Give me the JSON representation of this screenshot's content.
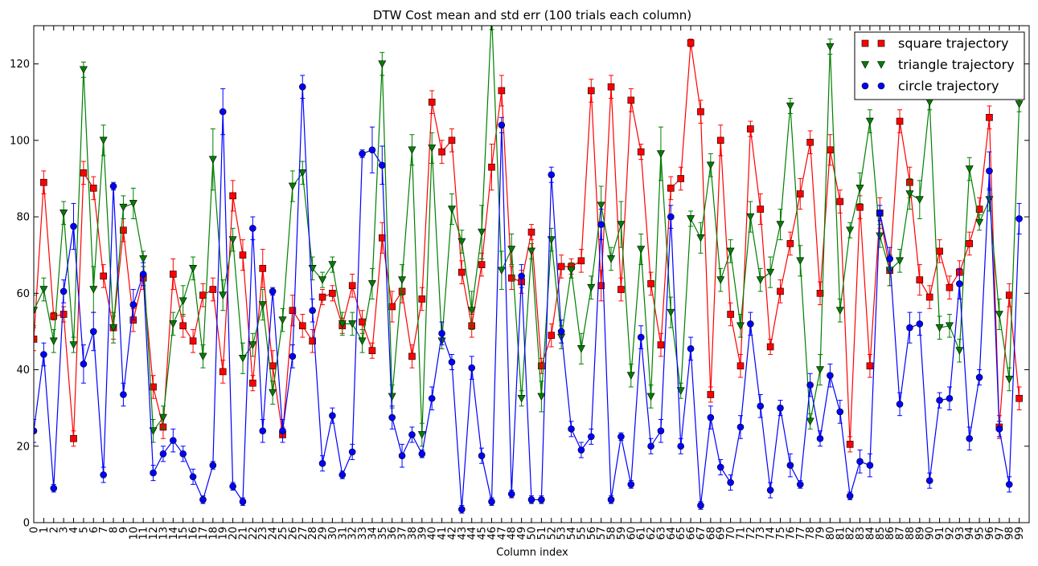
{
  "chart_data": {
    "type": "line",
    "title": "DTW Cost mean and std err (100 trials each column)",
    "xlabel": "Column index",
    "ylabel": "",
    "xlim": [
      0,
      100
    ],
    "ylim": [
      0,
      130
    ],
    "yticks": [
      0,
      20,
      40,
      60,
      80,
      100,
      120
    ],
    "legend_position": "top-right",
    "x": [
      0,
      1,
      2,
      3,
      4,
      5,
      6,
      7,
      8,
      9,
      10,
      11,
      12,
      13,
      14,
      15,
      16,
      17,
      18,
      19,
      20,
      21,
      22,
      23,
      24,
      25,
      26,
      27,
      28,
      29,
      30,
      31,
      32,
      33,
      34,
      35,
      36,
      37,
      38,
      39,
      40,
      41,
      42,
      43,
      44,
      45,
      46,
      47,
      48,
      49,
      50,
      51,
      52,
      53,
      54,
      55,
      56,
      57,
      58,
      59,
      60,
      61,
      62,
      63,
      64,
      65,
      66,
      67,
      68,
      69,
      70,
      71,
      72,
      73,
      74,
      75,
      76,
      77,
      78,
      79,
      80,
      81,
      82,
      83,
      84,
      85,
      86,
      87,
      88,
      89,
      90,
      91,
      92,
      93,
      94,
      95,
      96,
      97,
      98,
      99
    ],
    "series": [
      {
        "name": "square trajectory",
        "color": "#ff0000",
        "marker": "square",
        "values": [
          48,
          89,
          54,
          54.5,
          22,
          91.5,
          87.5,
          64.5,
          51,
          76.5,
          53,
          64,
          35.5,
          25,
          65,
          51.5,
          47.5,
          59.5,
          61,
          39.5,
          85.5,
          70,
          36.5,
          66.5,
          41,
          23,
          55.5,
          51.5,
          47.5,
          59,
          60,
          51.5,
          62,
          52.5,
          45,
          74.5,
          56.5,
          60.5,
          43.5,
          58.5,
          110,
          97,
          100,
          65.5,
          51.5,
          67.5,
          93,
          113,
          64,
          63,
          76,
          41,
          49,
          67,
          67,
          68.5,
          113,
          62,
          114,
          61,
          110.5,
          97,
          62.5,
          46.5,
          87.5,
          90,
          125.5,
          107.5,
          33.5,
          100,
          54.5,
          41,
          103,
          82,
          46,
          60.5,
          73,
          86,
          99.5,
          60,
          97.5,
          84,
          20.5,
          82.5,
          41,
          81,
          66,
          105,
          89,
          63.5,
          59,
          71,
          61.5,
          65.5,
          73,
          82,
          106,
          25,
          59.5,
          32.5
        ],
        "errors": [
          3,
          3,
          1,
          2,
          2,
          3,
          3,
          3,
          3,
          3,
          3,
          3,
          3,
          3,
          4,
          3,
          3,
          3,
          3,
          3,
          4,
          4,
          2,
          5,
          4,
          2,
          4,
          3,
          3,
          2,
          2,
          2,
          3,
          3,
          2,
          4,
          4,
          3,
          3,
          3,
          3,
          3,
          3,
          3,
          3,
          3,
          6,
          4,
          3,
          3,
          2,
          2,
          3,
          3,
          2,
          3,
          3,
          4,
          3,
          3,
          3,
          2,
          3,
          3,
          3,
          3,
          1,
          3,
          2,
          4,
          3,
          3,
          2,
          4,
          2,
          3,
          3,
          4,
          3,
          3,
          4,
          3,
          2,
          3,
          3,
          4,
          4,
          3,
          4,
          4,
          3,
          3,
          3,
          3,
          3,
          3,
          3,
          3,
          3,
          3
        ]
      },
      {
        "name": "triangle trajectory",
        "color": "#007f00",
        "marker": "triangle-down",
        "values": [
          55.5,
          61,
          47.5,
          81,
          46.5,
          118.5,
          61,
          100,
          51,
          82.5,
          83.5,
          69,
          24,
          27.5,
          52,
          58,
          66.5,
          43.5,
          95,
          59.5,
          74,
          43,
          46.5,
          57,
          34,
          53,
          88,
          91.5,
          66.5,
          63.5,
          67.5,
          52,
          52,
          47.5,
          62.5,
          120,
          33,
          63.5,
          97.5,
          23,
          98,
          47.5,
          82,
          73.5,
          55.5,
          76,
          133,
          66,
          71.5,
          32.5,
          71,
          33,
          74,
          48.5,
          66,
          45.5,
          61.5,
          83,
          69,
          78,
          38.5,
          71.5,
          33,
          96.5,
          55,
          34.5,
          79.5,
          74.5,
          93.5,
          63.5,
          71,
          51.5,
          80,
          63.5,
          65.5,
          78,
          109,
          68.5,
          26.5,
          40,
          124.5,
          55.5,
          76.5,
          87.5,
          105,
          75,
          66,
          68.5,
          86,
          84.5,
          110,
          51,
          51.5,
          45,
          92.5,
          78.5,
          84.5,
          54.5,
          37.5,
          109.5
        ],
        "errors": [
          4,
          3,
          3,
          3,
          2,
          2,
          6,
          4,
          4,
          3,
          4,
          2,
          3,
          3,
          3,
          4,
          3,
          3,
          8,
          4,
          3,
          4,
          3,
          4,
          3,
          3,
          4,
          3,
          3,
          2,
          2,
          3,
          3,
          3,
          4,
          3,
          3,
          4,
          4,
          3,
          4,
          2,
          4,
          3,
          5,
          7,
          4,
          5,
          4,
          2,
          2,
          4,
          3,
          3,
          2,
          4,
          3,
          5,
          3,
          6,
          3,
          4,
          3,
          7,
          4,
          2,
          2,
          4,
          3,
          3,
          3,
          3,
          4,
          3,
          4,
          4,
          2,
          4,
          2,
          4,
          2,
          3,
          2,
          4,
          3,
          3,
          4,
          3,
          4,
          5,
          2,
          3,
          3,
          3,
          3,
          2,
          3,
          4,
          3,
          2
        ]
      },
      {
        "name": "circle trajectory",
        "color": "#0000ff",
        "marker": "circle",
        "values": [
          24,
          44,
          9,
          60.5,
          77.5,
          41.5,
          50,
          12.5,
          88,
          33.5,
          57,
          65,
          13,
          18,
          21.5,
          18,
          12,
          6,
          15,
          107.5,
          9.5,
          5.5,
          77,
          24,
          60.5,
          24,
          43.5,
          114,
          55.5,
          15.5,
          28,
          12.5,
          18.5,
          96.5,
          97.5,
          93.5,
          27.5,
          17.5,
          23,
          18,
          32.5,
          49.5,
          42,
          3.5,
          40.5,
          17.5,
          5.5,
          104,
          7.5,
          64.5,
          6,
          6,
          91,
          50,
          24.5,
          19,
          22.5,
          78,
          6,
          22.5,
          10,
          48.5,
          20,
          24,
          80,
          20,
          45.5,
          4.5,
          27.5,
          14.5,
          10.5,
          25,
          52,
          30.5,
          8.5,
          30,
          15,
          10,
          36,
          22,
          38.5,
          29,
          7,
          16,
          15,
          81,
          69,
          31,
          51,
          52,
          11,
          32,
          32.5,
          62.5,
          22,
          38,
          92,
          24.5,
          10,
          79.5
        ],
        "errors": [
          3,
          3,
          1,
          3,
          6,
          5,
          5,
          2,
          1,
          3,
          4,
          3,
          2,
          2,
          3,
          2,
          2,
          1,
          1,
          6,
          1,
          1,
          3,
          3,
          1,
          3,
          3,
          3,
          3,
          2,
          2,
          1,
          2,
          1,
          6,
          5,
          3,
          3,
          2,
          1,
          3,
          3,
          2,
          1,
          3,
          2,
          1,
          2,
          1,
          3,
          1,
          1,
          2,
          3,
          2,
          2,
          2,
          4,
          1,
          1,
          1,
          3,
          2,
          3,
          3,
          2,
          3,
          1,
          3,
          2,
          2,
          3,
          3,
          3,
          2,
          2,
          3,
          1,
          3,
          2,
          3,
          3,
          1,
          3,
          3,
          2,
          3,
          3,
          4,
          3,
          2,
          2,
          3,
          4,
          3,
          2,
          5,
          2,
          2,
          4
        ]
      }
    ]
  }
}
